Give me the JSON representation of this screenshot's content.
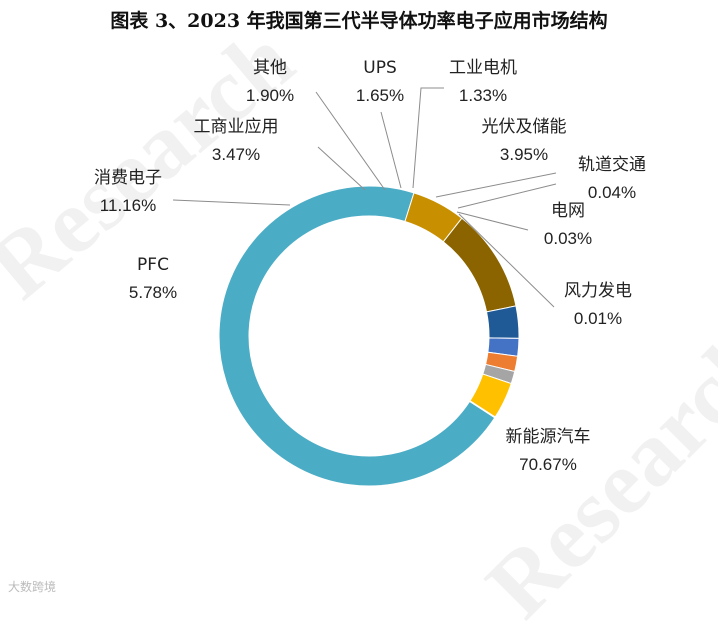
{
  "title": "图表 3、2023 年我国第三代半导体功率电子应用市场结构",
  "watermark": "Research",
  "source_note": "大数跨境",
  "chart_data": {
    "type": "pie",
    "style": "donut",
    "title": "图表 3、2023 年我国第三代半导体功率电子应用市场结构",
    "slices": [
      {
        "label": "新能源汽车",
        "value": 70.67,
        "value_label": "70.67%",
        "color": "#4BACC6"
      },
      {
        "label": "PFC",
        "value": 5.78,
        "value_label": "5.78%",
        "color": "#C89000"
      },
      {
        "label": "消费电子",
        "value": 11.16,
        "value_label": "11.16%",
        "color": "#8B6400"
      },
      {
        "label": "工商业应用",
        "value": 3.47,
        "value_label": "3.47%",
        "color": "#1F5A96"
      },
      {
        "label": "其他",
        "value": 1.9,
        "value_label": "1.90%",
        "color": "#4472C4"
      },
      {
        "label": "UPS",
        "value": 1.65,
        "value_label": "1.65%",
        "color": "#ED7D31"
      },
      {
        "label": "工业电机",
        "value": 1.33,
        "value_label": "1.33%",
        "color": "#A5A5A5"
      },
      {
        "label": "光伏及储能",
        "value": 3.95,
        "value_label": "3.95%",
        "color": "#FFC000"
      },
      {
        "label": "轨道交通",
        "value": 0.04,
        "value_label": "0.04%",
        "color": "#5B9BD5"
      },
      {
        "label": "电网",
        "value": 0.03,
        "value_label": "0.03%",
        "color": "#70AD47"
      },
      {
        "label": "风力发电",
        "value": 0.01,
        "value_label": "0.01%",
        "color": "#264478"
      }
    ]
  }
}
